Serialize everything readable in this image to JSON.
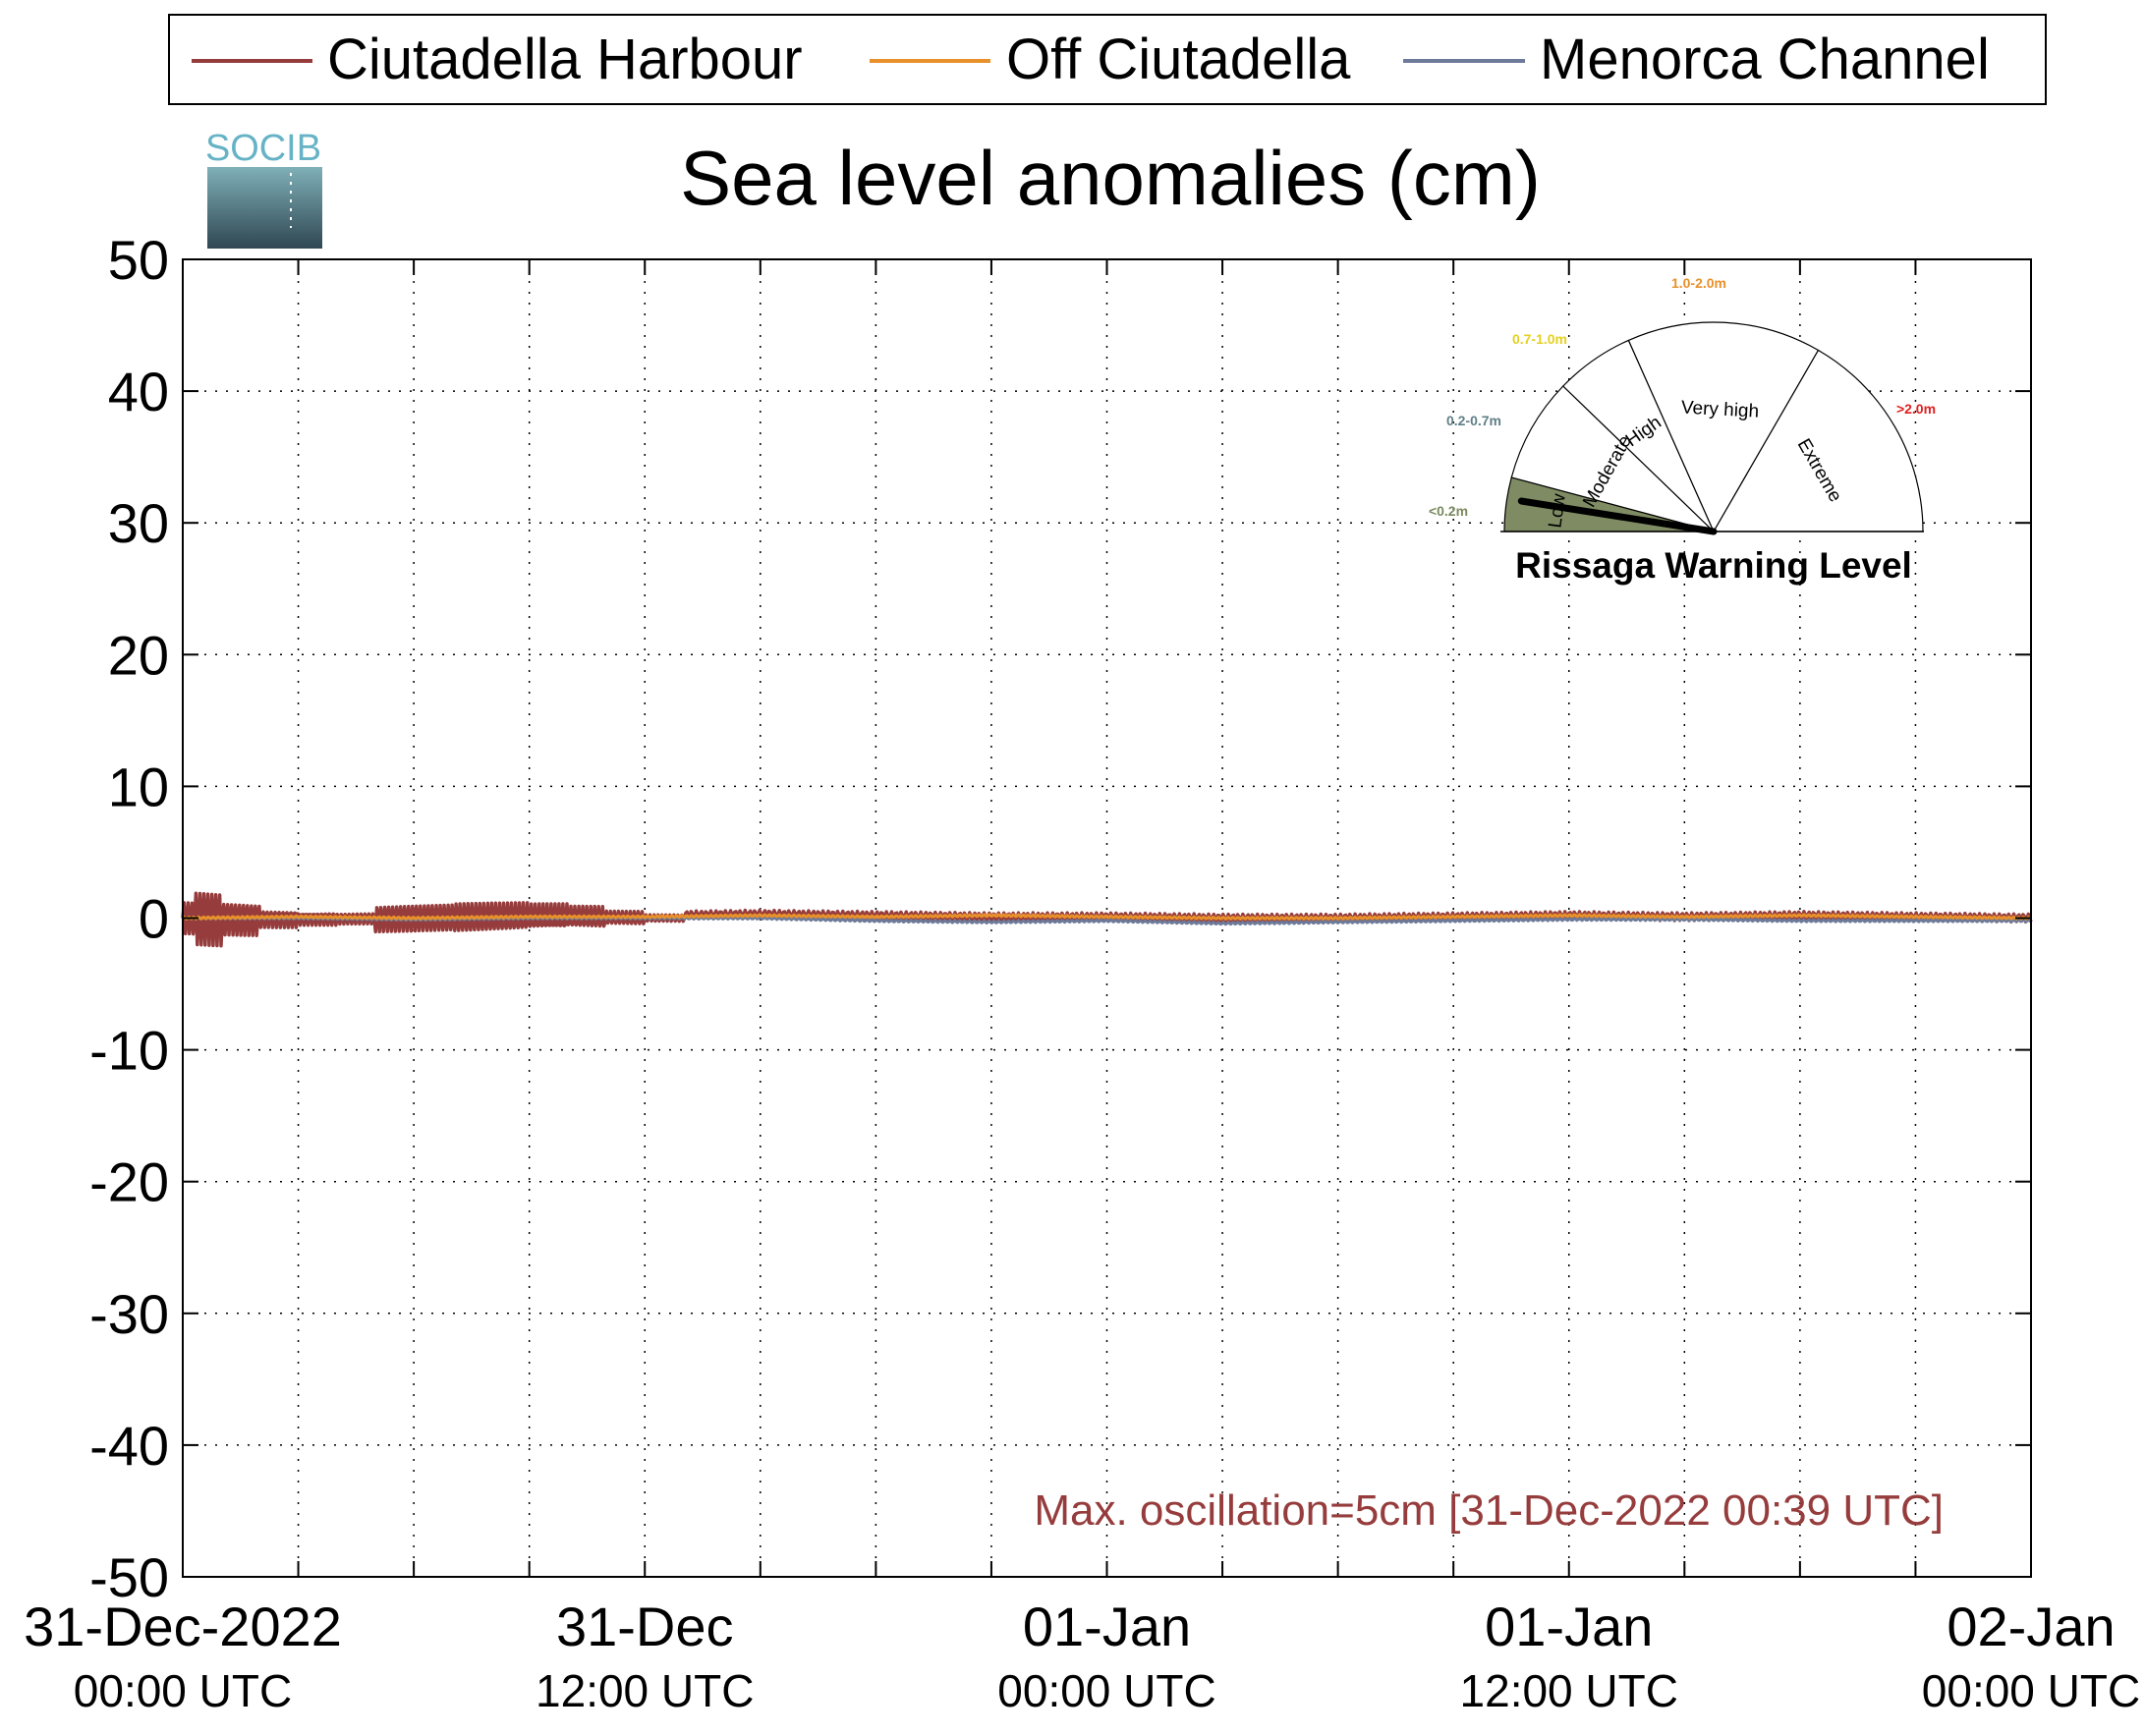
{
  "chart_data": {
    "type": "line",
    "title": "Sea level anomalies (cm)",
    "xlabel": "",
    "ylabel": "",
    "ylim": [
      -50,
      50
    ],
    "yticks": [
      50,
      40,
      30,
      20,
      10,
      0,
      -10,
      -20,
      -30,
      -40,
      -50
    ],
    "xlim": [
      "2022-12-31 00:00",
      "2023-01-02 00:00"
    ],
    "xticks_major": [
      {
        "line1": "31-Dec-2022",
        "line2": "00:00 UTC",
        "t": "2022-12-31 00:00"
      },
      {
        "line1": "31-Dec",
        "line2": "12:00 UTC",
        "t": "2022-12-31 12:00"
      },
      {
        "line1": "01-Jan",
        "line2": "00:00 UTC",
        "t": "2023-01-01 00:00"
      },
      {
        "line1": "01-Jan",
        "line2": "12:00 UTC",
        "t": "2023-01-01 12:00"
      },
      {
        "line1": "02-Jan",
        "line2": "00:00 UTC",
        "t": "2023-01-02 00:00"
      }
    ],
    "grid": true,
    "legend_position": "top",
    "series": [
      {
        "name": "Ciutadella Harbour",
        "color": "#963c3c",
        "x": [
          "2022-12-31 00:00",
          "2022-12-31 00:20",
          "2022-12-31 00:39",
          "2022-12-31 01:00",
          "2022-12-31 01:30",
          "2022-12-31 02:00",
          "2022-12-31 03:00",
          "2022-12-31 04:00",
          "2022-12-31 05:00",
          "2022-12-31 06:00",
          "2022-12-31 07:00",
          "2022-12-31 08:00",
          "2022-12-31 09:00",
          "2022-12-31 10:00",
          "2022-12-31 11:00",
          "2022-12-31 12:00",
          "2022-12-31 15:00",
          "2022-12-31 18:00",
          "2022-12-31 21:00",
          "2023-01-01 00:00",
          "2023-01-01 03:00",
          "2023-01-01 06:00",
          "2023-01-01 09:00",
          "2023-01-01 12:00",
          "2023-01-01 15:00",
          "2023-01-01 18:00",
          "2023-01-01 21:00",
          "2023-01-02 00:00"
        ],
        "y": [
          0.0,
          1.5,
          -2.5,
          1.2,
          -1.5,
          0.8,
          -0.6,
          0.5,
          -0.4,
          1.2,
          -1.2,
          1.3,
          -1.2,
          1.0,
          -0.6,
          0.2,
          0.3,
          0.2,
          0.1,
          0.1,
          0.0,
          0.0,
          0.1,
          0.2,
          0.1,
          0.2,
          0.1,
          0.0
        ]
      },
      {
        "name": "Off Ciutadella",
        "color": "#e8902a",
        "x": [
          "2022-12-31 00:00",
          "2022-12-31 03:00",
          "2022-12-31 06:00",
          "2022-12-31 09:00",
          "2022-12-31 12:00",
          "2022-12-31 15:00",
          "2022-12-31 18:00",
          "2022-12-31 21:00",
          "2023-01-01 00:00",
          "2023-01-01 03:00",
          "2023-01-01 06:00",
          "2023-01-01 09:00",
          "2023-01-01 12:00",
          "2023-01-01 15:00",
          "2023-01-01 18:00",
          "2023-01-01 21:00",
          "2023-01-02 00:00"
        ],
        "y": [
          0.0,
          0.1,
          0.0,
          0.1,
          0.1,
          0.2,
          0.1,
          0.2,
          0.1,
          0.0,
          0.0,
          0.1,
          0.2,
          0.1,
          0.2,
          0.1,
          0.0
        ]
      },
      {
        "name": "Menorca Channel",
        "color": "#6d7a99",
        "x": [
          "2022-12-31 00:00",
          "2022-12-31 03:00",
          "2022-12-31 06:00",
          "2022-12-31 09:00",
          "2022-12-31 12:00",
          "2022-12-31 15:00",
          "2022-12-31 18:00",
          "2022-12-31 21:00",
          "2023-01-01 00:00",
          "2023-01-01 03:00",
          "2023-01-01 06:00",
          "2023-01-01 09:00",
          "2023-01-01 12:00",
          "2023-01-01 15:00",
          "2023-01-01 18:00",
          "2023-01-01 21:00",
          "2023-01-02 00:00"
        ],
        "y": [
          0.0,
          0.0,
          -0.1,
          0.0,
          0.0,
          0.0,
          -0.2,
          -0.3,
          -0.2,
          -0.4,
          -0.3,
          -0.2,
          -0.1,
          -0.1,
          -0.2,
          -0.2,
          -0.2
        ]
      }
    ],
    "annotation": "Max. oscillation=5cm [31-Dec-2022 00:39 UTC]",
    "annotation_color": "#963c3c"
  },
  "logo": {
    "text": "SOCIB"
  },
  "gauge": {
    "title": "Rissaga Warning Level",
    "current_level": "Low",
    "current_fraction": 0.05,
    "sectors": [
      {
        "label": "Low",
        "range": "<0.2m",
        "range_color": "#7a8a60",
        "fill": "#7f8c63"
      },
      {
        "label": "Moderate",
        "range": "0.2-0.7m",
        "range_color": "#5f7f86",
        "fill": "#ffffff"
      },
      {
        "label": "High",
        "range": "0.7-1.0m",
        "range_color": "#e6d020",
        "fill": "#ffffff"
      },
      {
        "label": "Very high",
        "range": "1.0-2.0m",
        "range_color": "#e8902a",
        "fill": "#ffffff"
      },
      {
        "label": "Extreme",
        "range": ">2.0m",
        "range_color": "#e02020",
        "fill": "#ffffff"
      }
    ]
  }
}
